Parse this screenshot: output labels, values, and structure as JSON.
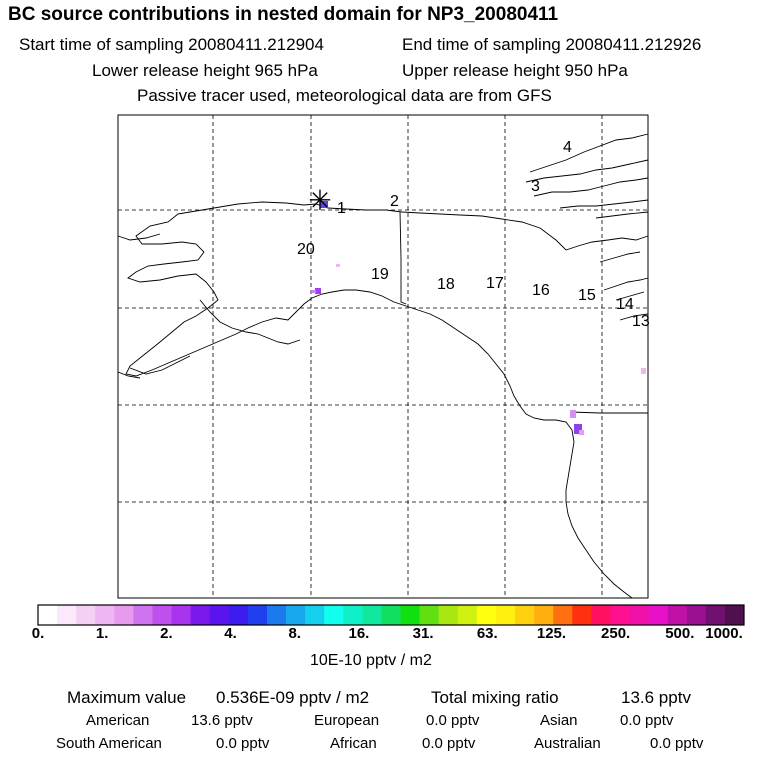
{
  "title": "BC  source contributions in nested domain for NP3_20080411",
  "header": {
    "start_time": "Start time of sampling 20080411.212904",
    "end_time": "End time of sampling 20080411.212926",
    "lower_release": "Lower release height  965 hPa",
    "upper_release": "Upper release height  950 hPa",
    "note": "Passive tracer used, meteorological data are from GFS"
  },
  "map": {
    "release_marker_symbol": "✳",
    "track_labels": [
      "1",
      "2",
      "3",
      "4",
      "13",
      "14",
      "15",
      "16",
      "17",
      "18",
      "19",
      "20"
    ]
  },
  "colorbar": {
    "colors": [
      "#ffffff",
      "#fbe8fb",
      "#f5d0f5",
      "#eeb6f2",
      "#e89aef",
      "#d073ee",
      "#c050ee",
      "#a834ee",
      "#7a18ee",
      "#5a14ee",
      "#3c1cee",
      "#2040ee",
      "#1c7aee",
      "#18a8ee",
      "#14d0ee",
      "#10ffee",
      "#10f0c8",
      "#10e8a0",
      "#10e060",
      "#10e010",
      "#60e010",
      "#a8e810",
      "#d0f010",
      "#ffff10",
      "#fff010",
      "#ffd010",
      "#ffb010",
      "#ff7010",
      "#ff3010",
      "#ff1060",
      "#ff1090",
      "#f010a8",
      "#e810c8",
      "#c010a8",
      "#9a1090",
      "#701070",
      "#501050"
    ],
    "labels": [
      "0.",
      "1.",
      "2.",
      "4.",
      "8.",
      "16.",
      "31.",
      "63.",
      "125.",
      "250.",
      "500.",
      "1000."
    ],
    "units": "10E-10 pptv / m2"
  },
  "stats": {
    "max_label": "Maximum value",
    "max_value": "0.536E-09 pptv / m2",
    "total_label": "Total mixing ratio",
    "total_value": "13.6 pptv",
    "sources": [
      {
        "name": "American",
        "value": "13.6 pptv"
      },
      {
        "name": "European",
        "value": "0.0 pptv"
      },
      {
        "name": "Asian",
        "value": "0.0 pptv"
      },
      {
        "name": "South American",
        "value": "0.0 pptv"
      },
      {
        "name": "African",
        "value": "0.0 pptv"
      },
      {
        "name": "Australian",
        "value": "0.0 pptv"
      }
    ]
  }
}
